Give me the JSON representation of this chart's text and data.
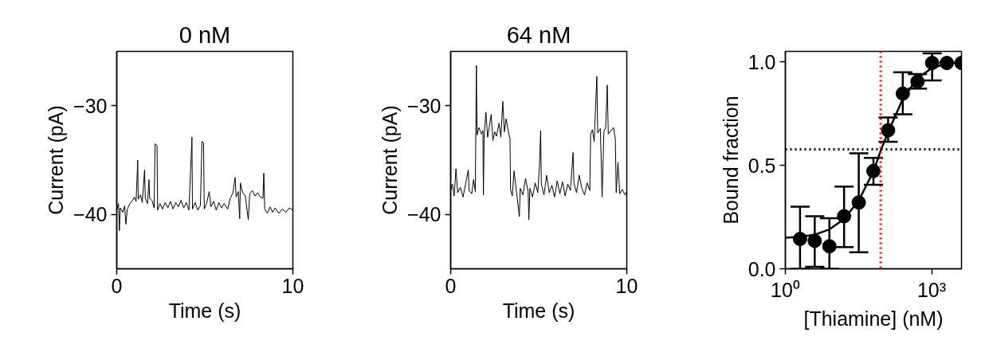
{
  "chart_data": [
    {
      "type": "line",
      "title": "0 nM",
      "xlabel": "Time (s)",
      "ylabel": "Current (pA)",
      "xlim": [
        0,
        10
      ],
      "xticks": [
        0,
        10
      ],
      "ylim": [
        -45,
        -25
      ],
      "yticks": [
        {
          "value": -30,
          "label": "−30"
        },
        {
          "value": -40,
          "label": "−40"
        }
      ],
      "grid": false,
      "line_style": "solid",
      "series": [
        {
          "color": "#000000",
          "x": [
            0,
            0.1,
            0.15,
            0.2,
            0.35,
            0.45,
            0.52,
            0.6,
            0.75,
            0.9,
            1.0,
            1.1,
            1.19,
            1.22,
            1.35,
            1.45,
            1.58,
            1.62,
            1.75,
            1.83,
            1.87,
            2.0,
            2.12,
            2.18,
            2.29,
            2.32,
            2.45,
            2.6,
            2.75,
            2.9,
            3.05,
            3.2,
            3.35,
            3.5,
            3.65,
            3.8,
            3.95,
            4.1,
            4.27,
            4.3,
            4.45,
            4.6,
            4.75,
            4.84,
            4.93,
            4.97,
            5.1,
            5.25,
            5.35,
            5.5,
            5.65,
            5.8,
            5.95,
            6.1,
            6.3,
            6.45,
            6.6,
            6.72,
            6.78,
            6.9,
            6.98,
            7.02,
            7.15,
            7.3,
            7.47,
            7.55,
            7.7,
            7.85,
            8.0,
            8.15,
            8.3,
            8.35,
            8.4,
            8.55,
            8.7,
            8.85,
            9.0,
            9.2,
            9.4,
            9.6,
            9.8,
            10
          ],
          "values": [
            -39.6,
            -39.0,
            -41.5,
            -39.4,
            -39.8,
            -39.2,
            -40.9,
            -39.5,
            -39.0,
            -38.7,
            -38.4,
            -38.8,
            -35.0,
            -38.6,
            -38.2,
            -38.9,
            -35.9,
            -38.5,
            -39.0,
            -36.8,
            -38.5,
            -38.7,
            -39.4,
            -33.5,
            -33.7,
            -39.6,
            -39.0,
            -39.5,
            -38.9,
            -39.4,
            -38.8,
            -39.5,
            -38.9,
            -39.3,
            -38.7,
            -39.4,
            -38.9,
            -39.6,
            -32.9,
            -39.5,
            -38.9,
            -39.6,
            -39.2,
            -33.3,
            -33.4,
            -39.5,
            -39.0,
            -37.9,
            -39.3,
            -38.8,
            -39.6,
            -38.9,
            -39.4,
            -39.0,
            -39.5,
            -38.5,
            -38.0,
            -36.6,
            -38.4,
            -37.9,
            -40.4,
            -37.1,
            -38.0,
            -38.3,
            -40.5,
            -38.1,
            -37.8,
            -38.3,
            -38.0,
            -38.4,
            -38.5,
            -36.2,
            -39.5,
            -39.9,
            -39.3,
            -39.8,
            -39.4,
            -39.9,
            -39.5,
            -39.8,
            -39.4,
            -39.6
          ]
        }
      ]
    },
    {
      "type": "line",
      "title": "64 nM",
      "xlabel": "Time (s)",
      "ylabel": "Current (pA)",
      "xlim": [
        0,
        10
      ],
      "xticks": [
        0,
        10
      ],
      "ylim": [
        -45,
        -25
      ],
      "yticks": [
        {
          "value": -30,
          "label": "−30"
        },
        {
          "value": -40,
          "label": "−40"
        }
      ],
      "grid": false,
      "line_style": "solid",
      "series": [
        {
          "color": "#000000",
          "x": [
            0,
            0.1,
            0.2,
            0.3,
            0.4,
            0.55,
            0.7,
            0.85,
            1.0,
            1.05,
            1.2,
            1.3,
            1.4,
            1.46,
            1.5,
            1.6,
            1.75,
            1.83,
            1.86,
            1.9,
            2.0,
            2.1,
            2.2,
            2.3,
            2.4,
            2.5,
            2.6,
            2.75,
            2.85,
            2.96,
            3.05,
            3.15,
            3.3,
            3.37,
            3.4,
            3.5,
            3.6,
            3.75,
            3.9,
            3.95,
            4.1,
            4.25,
            4.4,
            4.44,
            4.5,
            4.65,
            4.8,
            4.95,
            5.05,
            5.11,
            5.15,
            5.3,
            5.45,
            5.6,
            5.75,
            5.9,
            6.05,
            6.2,
            6.35,
            6.5,
            6.65,
            6.8,
            6.95,
            7.0,
            7.15,
            7.3,
            7.45,
            7.6,
            7.75,
            7.9,
            7.95,
            8.05,
            8.15,
            8.3,
            8.35,
            8.5,
            8.6,
            8.7,
            8.8,
            8.89,
            8.95,
            9.1,
            9.25,
            9.35,
            9.4,
            9.5,
            9.6,
            9.75,
            9.9,
            10
          ],
          "values": [
            -37.8,
            -37.2,
            -38.3,
            -35.8,
            -38.0,
            -37.5,
            -38.4,
            -37.2,
            -35.9,
            -37.8,
            -38.1,
            -36.8,
            -37.9,
            -26.3,
            -32.7,
            -32.0,
            -32.6,
            -32.3,
            -38.2,
            -32.8,
            -30.6,
            -32.9,
            -31.9,
            -30.8,
            -33.2,
            -32.4,
            -32.8,
            -31.6,
            -32.9,
            -29.6,
            -32.4,
            -31.2,
            -32.6,
            -33.0,
            -37.7,
            -38.3,
            -36.0,
            -38.1,
            -40.2,
            -37.6,
            -38.2,
            -36.7,
            -37.9,
            -40.5,
            -37.6,
            -38.4,
            -37.1,
            -38.0,
            -35.3,
            -32.3,
            -37.2,
            -38.2,
            -36.4,
            -38.0,
            -37.3,
            -38.4,
            -36.9,
            -38.1,
            -37.0,
            -38.3,
            -37.2,
            -37.8,
            -34.3,
            -37.1,
            -38.0,
            -36.4,
            -37.6,
            -38.2,
            -37.1,
            -37.8,
            -32.6,
            -32.2,
            -33.3,
            -27.3,
            -32.5,
            -32.1,
            -38.4,
            -32.4,
            -32.0,
            -28.1,
            -32.6,
            -32.3,
            -32.0,
            -33.1,
            -38.0,
            -35.2,
            -38.1,
            -37.7,
            -38.2,
            -37.9
          ]
        }
      ]
    },
    {
      "type": "scatter",
      "xlabel": "[Thiamine] (nM)",
      "ylabel": "Bound fraction",
      "log": "x",
      "xlim": [
        1,
        4096
      ],
      "xticks": [
        {
          "value": 1,
          "label": "10⁰"
        },
        {
          "value": 1000,
          "label": "10³"
        }
      ],
      "ylim": [
        0,
        1.05
      ],
      "yticks": [
        {
          "value": 0,
          "label": "0.0"
        },
        {
          "value": 0.5,
          "label": "0.5"
        },
        {
          "value": 1,
          "label": "1.0"
        }
      ],
      "grid": false,
      "ref_lines": [
        {
          "axis": "x",
          "value": 90,
          "color": "#ff0000",
          "line_style": "dotted"
        },
        {
          "axis": "y",
          "value": 0.577,
          "color": "#000000",
          "line_style": "dotted"
        }
      ],
      "series": [
        {
          "type": "line",
          "color": "#000000",
          "line_style": "solid",
          "x": [
            1,
            2,
            4,
            8,
            16,
            32,
            64,
            90,
            128,
            256,
            512,
            1024,
            2048,
            4096
          ],
          "values": [
            0.15,
            0.155,
            0.165,
            0.19,
            0.24,
            0.33,
            0.47,
            0.57,
            0.66,
            0.82,
            0.92,
            0.97,
            0.99,
            1.0
          ]
        },
        {
          "type": "scatter",
          "color": "#000000",
          "marker": "circle",
          "x": [
            2,
            4,
            8,
            16,
            32,
            64,
            128,
            256,
            512,
            1024,
            2048,
            4096
          ],
          "values": [
            0.144,
            0.135,
            0.109,
            0.254,
            0.32,
            0.472,
            0.669,
            0.846,
            0.904,
            0.994,
            0.994,
            0.994
          ],
          "errors": [
            [
              0.0,
              0.3
            ],
            [
              0.01,
              0.254
            ],
            [
              0.0,
              0.244
            ],
            [
              0.105,
              0.397
            ],
            [
              0.08,
              0.558
            ],
            [
              0.406,
              0.536
            ],
            [
              0.613,
              0.731
            ],
            [
              0.746,
              0.949
            ],
            [
              0.87,
              0.94
            ],
            [
              0.91,
              1.04
            ],
            null,
            null
          ]
        }
      ]
    }
  ]
}
